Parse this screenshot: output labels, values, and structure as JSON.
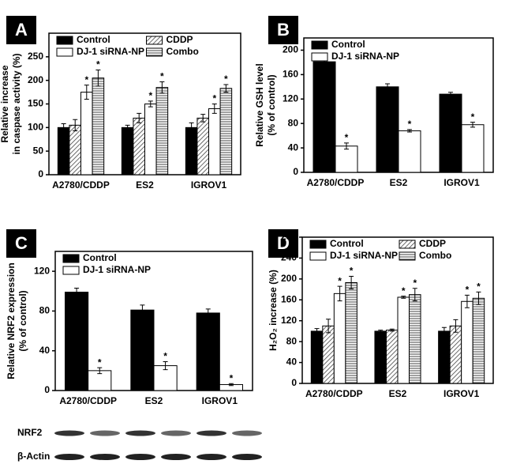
{
  "chart_data": [
    {
      "type": "bar",
      "letter": "A",
      "ylabel": [
        "Relative increase",
        "in caspase activity (%)"
      ],
      "categories": [
        "A2780/CDDP",
        "ES2",
        "IGROV1"
      ],
      "ylim": [
        0,
        300
      ],
      "yticks": [
        0,
        50,
        100,
        150,
        200,
        250
      ],
      "legend_columns": 2,
      "star": "*",
      "series": [
        {
          "name": "Control",
          "pattern": "black",
          "values": [
            100,
            100,
            100
          ],
          "errors": [
            8,
            5,
            10
          ],
          "stars": [
            false,
            false,
            false
          ]
        },
        {
          "name": "CDDP",
          "pattern": "diagonal",
          "values": [
            105,
            120,
            120
          ],
          "errors": [
            12,
            10,
            8
          ],
          "stars": [
            false,
            false,
            false
          ]
        },
        {
          "name": "DJ-1 siRNA-NP",
          "pattern": "white",
          "values": [
            175,
            150,
            140
          ],
          "errors": [
            15,
            6,
            10
          ],
          "stars": [
            true,
            true,
            true
          ]
        },
        {
          "name": "Combo",
          "pattern": "horizontal",
          "values": [
            205,
            185,
            183
          ],
          "errors": [
            17,
            12,
            8
          ],
          "stars": [
            true,
            true,
            true
          ]
        }
      ]
    },
    {
      "type": "bar",
      "letter": "B",
      "ylabel": [
        "Relative GSH level",
        "(% of control)"
      ],
      "categories": [
        "A2780/CDDP",
        "ES2",
        "IGROV1"
      ],
      "ylim": [
        0,
        220
      ],
      "yticks": [
        0,
        40,
        80,
        120,
        160,
        200
      ],
      "legend_columns": 1,
      "star": "*",
      "series": [
        {
          "name": "Control",
          "pattern": "black",
          "values": [
            181,
            140,
            128
          ],
          "errors": [
            5,
            5,
            3
          ],
          "stars": [
            false,
            false,
            false
          ]
        },
        {
          "name": "DJ-1 siRNA-NP",
          "pattern": "white",
          "values": [
            43,
            68,
            78
          ],
          "errors": [
            5,
            2,
            4
          ],
          "stars": [
            true,
            true,
            true
          ]
        }
      ]
    },
    {
      "type": "bar",
      "letter": "C",
      "ylabel": [
        "Relative NRF2 expression",
        "(% of control)"
      ],
      "categories": [
        "A2780/CDDP",
        "ES2",
        "IGROV1"
      ],
      "ylim": [
        0,
        140
      ],
      "yticks": [
        0,
        40,
        80,
        120
      ],
      "legend_columns": 1,
      "star": "*",
      "blot_labels": [
        "NRF2",
        "β-Actin"
      ],
      "series": [
        {
          "name": "Control",
          "pattern": "black",
          "values": [
            99,
            81,
            78
          ],
          "errors": [
            4,
            5,
            4
          ],
          "stars": [
            false,
            false,
            false
          ]
        },
        {
          "name": "DJ-1 siRNA-NP",
          "pattern": "white",
          "values": [
            20,
            25,
            6
          ],
          "errors": [
            3,
            4,
            1
          ],
          "stars": [
            true,
            true,
            true
          ]
        }
      ]
    },
    {
      "type": "bar",
      "letter": "D",
      "ylabel": [
        "H₂O₂ increase (%)"
      ],
      "categories": [
        "A2780/CDDP",
        "ES2",
        "IGROV1"
      ],
      "ylim": [
        0,
        280
      ],
      "yticks": [
        0,
        40,
        80,
        120,
        160,
        200,
        240,
        280
      ],
      "legend_columns": 2,
      "star": "*",
      "series": [
        {
          "name": "Control",
          "pattern": "black",
          "values": [
            100,
            100,
            100
          ],
          "errors": [
            5,
            2,
            7
          ],
          "stars": [
            false,
            false,
            false
          ]
        },
        {
          "name": "CDDP",
          "pattern": "diagonal",
          "values": [
            110,
            102,
            110
          ],
          "errors": [
            13,
            2,
            12
          ],
          "stars": [
            false,
            false,
            false
          ]
        },
        {
          "name": "DJ-1 siRNA-NP",
          "pattern": "white",
          "values": [
            172,
            165,
            157
          ],
          "errors": [
            14,
            2,
            12
          ],
          "stars": [
            true,
            true,
            true
          ]
        },
        {
          "name": "Combo",
          "pattern": "horizontal",
          "values": [
            193,
            170,
            163
          ],
          "errors": [
            12,
            12,
            12
          ],
          "stars": [
            true,
            true,
            true
          ]
        }
      ]
    }
  ]
}
